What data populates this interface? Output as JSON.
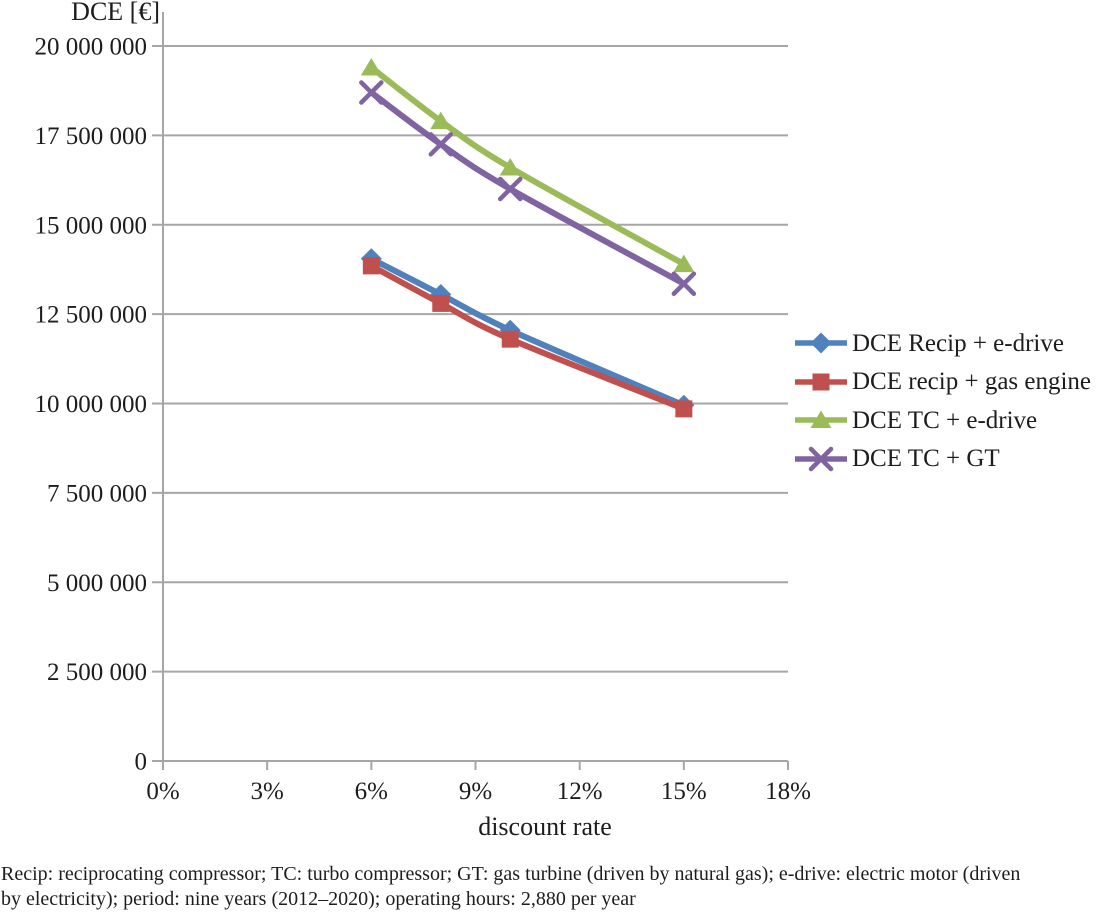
{
  "chart_data": {
    "type": "line",
    "title": "",
    "y_axis_title": "DCE [€]",
    "x_axis_title": "discount rate",
    "xlim": [
      0,
      18
    ],
    "ylim": [
      0,
      20000000
    ],
    "x_ticks": [
      0,
      3,
      6,
      9,
      12,
      15,
      18
    ],
    "x_tick_labels": [
      "0%",
      "3%",
      "6%",
      "9%",
      "12%",
      "15%",
      "18%"
    ],
    "y_ticks": [
      0,
      2500000,
      5000000,
      7500000,
      10000000,
      12500000,
      15000000,
      17500000,
      20000000
    ],
    "y_tick_labels": [
      "0",
      "2 500 000",
      "5 000 000",
      "7 500 000",
      "10 000 000",
      "12 500 000",
      "15 000 000",
      "17 500 000",
      "20 000 000"
    ],
    "grid": "horizontal",
    "smoothed_lines": true,
    "legend_position": "right",
    "x": [
      6,
      8,
      10,
      15
    ],
    "series": [
      {
        "name": "DCE Recip + e-drive",
        "marker": "diamond",
        "color": "#4F81BD",
        "values": [
          14050000,
          13050000,
          12050000,
          9950000
        ]
      },
      {
        "name": "DCE recip + gas engine",
        "marker": "square",
        "color": "#C0504D",
        "values": [
          13850000,
          12800000,
          11800000,
          9850000
        ]
      },
      {
        "name": "DCE TC + e-drive",
        "marker": "triangle",
        "color": "#9BBB59",
        "values": [
          19400000,
          17900000,
          16600000,
          13900000
        ]
      },
      {
        "name": "DCE TC + GT",
        "marker": "x",
        "color": "#8064A2",
        "values": [
          18700000,
          17250000,
          16000000,
          13350000
        ]
      }
    ],
    "axis_color": "#A6A6A6",
    "text_color": "#1d1d1d"
  },
  "caption_lines": [
    "Recip: reciprocating compressor; TC: turbo compressor; GT: gas turbine (driven by natural gas); e-drive: electric motor (driven",
    "by electricity); period: nine years (2012–2020); operating hours: 2,880 per year"
  ]
}
